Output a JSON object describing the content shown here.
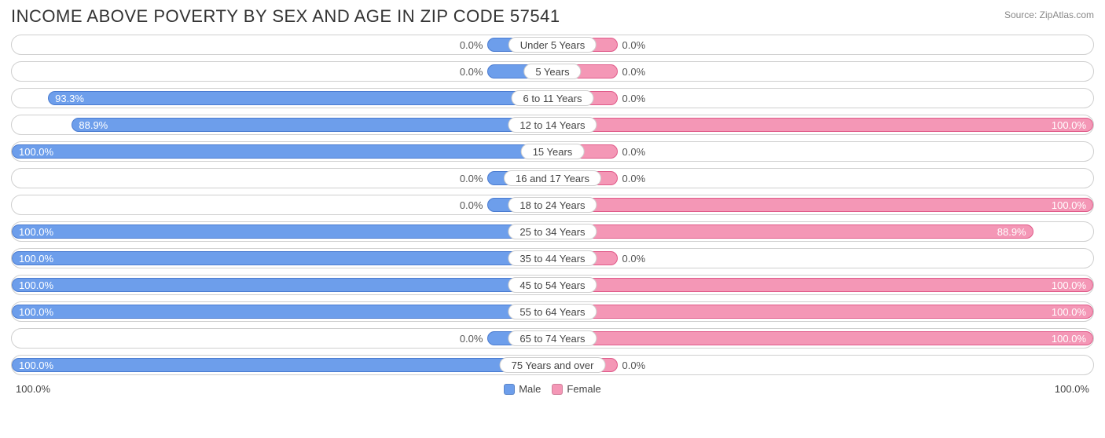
{
  "title": "INCOME ABOVE POVERTY BY SEX AND AGE IN ZIP CODE 57541",
  "source": "Source: ZipAtlas.com",
  "colors": {
    "male_fill": "#6d9eeb",
    "male_border": "#4a7bd0",
    "female_fill": "#f497b6",
    "female_border": "#e05a89",
    "track_border": "#cfcfcf",
    "background": "#ffffff",
    "text": "#444444",
    "bar_text": "#ffffff"
  },
  "chart": {
    "type": "diverging-bar",
    "min_bar_pct": 12,
    "axis_left_label": "100.0%",
    "axis_right_label": "100.0%",
    "rows": [
      {
        "category": "Under 5 Years",
        "male": 0.0,
        "female": 0.0
      },
      {
        "category": "5 Years",
        "male": 0.0,
        "female": 0.0
      },
      {
        "category": "6 to 11 Years",
        "male": 93.3,
        "female": 0.0
      },
      {
        "category": "12 to 14 Years",
        "male": 88.9,
        "female": 100.0
      },
      {
        "category": "15 Years",
        "male": 100.0,
        "female": 0.0
      },
      {
        "category": "16 and 17 Years",
        "male": 0.0,
        "female": 0.0
      },
      {
        "category": "18 to 24 Years",
        "male": 0.0,
        "female": 100.0
      },
      {
        "category": "25 to 34 Years",
        "male": 100.0,
        "female": 88.9
      },
      {
        "category": "35 to 44 Years",
        "male": 100.0,
        "female": 0.0
      },
      {
        "category": "45 to 54 Years",
        "male": 100.0,
        "female": 100.0
      },
      {
        "category": "55 to 64 Years",
        "male": 100.0,
        "female": 100.0
      },
      {
        "category": "65 to 74 Years",
        "male": 0.0,
        "female": 100.0
      },
      {
        "category": "75 Years and over",
        "male": 100.0,
        "female": 0.0
      }
    ]
  },
  "legend": {
    "male": "Male",
    "female": "Female"
  }
}
